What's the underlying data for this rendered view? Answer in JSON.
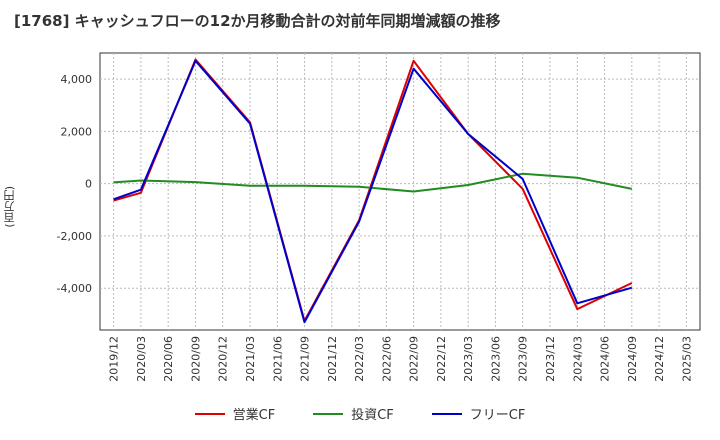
{
  "chart_data": {
    "type": "line",
    "title": "[1768]  キャッシュフローの12か月移動合計の対前年同期増減額の推移",
    "ylabel": "(百万円)",
    "xlabel": "",
    "ylim": [
      -5600,
      5000
    ],
    "yticks": [
      4000,
      2000,
      0,
      -2000,
      -4000
    ],
    "ytick_labels": [
      "4,000",
      "2,000",
      "0",
      "-2,000",
      "-4,000"
    ],
    "categories": [
      "2019/12",
      "2020/03",
      "2020/06",
      "2020/09",
      "2020/12",
      "2021/03",
      "2021/06",
      "2021/09",
      "2021/12",
      "2022/03",
      "2022/06",
      "2022/09",
      "2022/12",
      "2023/03",
      "2023/06",
      "2023/09",
      "2023/12",
      "2024/03",
      "2024/06",
      "2024/09",
      "2024/12",
      "2025/03"
    ],
    "grid": true,
    "legend_position": "bottom",
    "series": [
      {
        "name": "営業CF",
        "color": "#dd0000",
        "values": [
          -650,
          -350,
          null,
          4750,
          null,
          2350,
          null,
          -5250,
          null,
          -1400,
          null,
          4700,
          null,
          1900,
          null,
          -200,
          null,
          -4800,
          null,
          -3800,
          null,
          null
        ]
      },
      {
        "name": "投資CF",
        "color": "#228B22",
        "values": [
          50,
          120,
          null,
          60,
          null,
          -80,
          null,
          -80,
          null,
          -120,
          null,
          -300,
          null,
          -50,
          null,
          380,
          null,
          230,
          null,
          -200,
          null,
          null
        ]
      },
      {
        "name": "フリーCF",
        "color": "#0000cc",
        "values": [
          -600,
          -230,
          null,
          4700,
          null,
          2300,
          null,
          -5300,
          null,
          -1450,
          null,
          4400,
          null,
          1900,
          null,
          180,
          null,
          -4580,
          null,
          -3980,
          null,
          null
        ]
      }
    ]
  }
}
